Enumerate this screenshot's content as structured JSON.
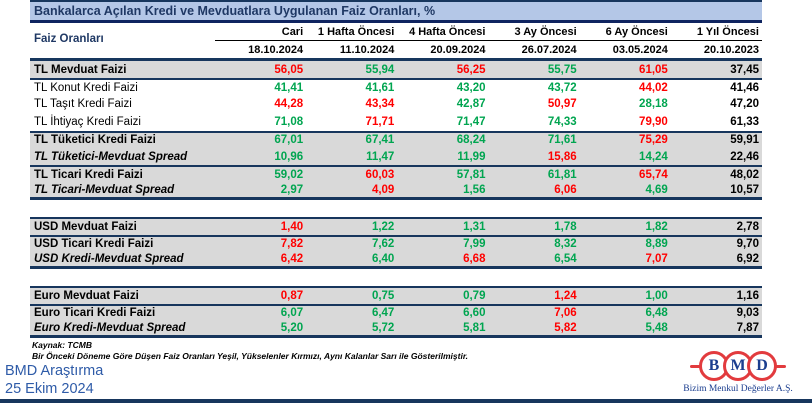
{
  "title": "Bankalarca Açılan Kredi ve Mevduatlara Uygulanan Faiz Oranları, %",
  "colors": {
    "red": "#FF0000",
    "green": "#00A550",
    "black": "#000000",
    "navy_border": "#17365D",
    "title_bg": "#B4C7E7",
    "title_text": "#1F3864",
    "shaded_row_bg": "#D9D9D9",
    "footer_blue": "#2E5BA8",
    "logo_red": "#E23B3E",
    "logo_blue": "#1B3E8F"
  },
  "table": {
    "corner_label": "Faiz Oranları",
    "columns": [
      {
        "label": "Cari",
        "date": "18.10.2024"
      },
      {
        "label": "1 Hafta Öncesi",
        "date": "11.10.2024"
      },
      {
        "label": "4 Hafta Öncesi",
        "date": "20.09.2024"
      },
      {
        "label": "3 Ay Öncesi",
        "date": "26.07.2024"
      },
      {
        "label": "6 Ay Öncesi",
        "date": "03.05.2024"
      },
      {
        "label": "1 Yıl Öncesi",
        "date": "20.10.2023"
      }
    ],
    "rows": [
      {
        "label": "TL Mevduat Faizi",
        "style": "bold",
        "shaded": true,
        "flags": [],
        "values": [
          [
            "56,05",
            "r"
          ],
          [
            "55,94",
            "g"
          ],
          [
            "56,25",
            "r"
          ],
          [
            "55,75",
            "g"
          ],
          [
            "61,05",
            "r"
          ],
          [
            "37,45",
            "k"
          ]
        ]
      },
      {
        "label": "TL Konut Kredi Faizi",
        "style": "regular",
        "shaded": false,
        "flags": [
          "bt"
        ],
        "values": [
          [
            "41,41",
            "g"
          ],
          [
            "41,61",
            "g"
          ],
          [
            "43,20",
            "g"
          ],
          [
            "43,72",
            "g"
          ],
          [
            "44,02",
            "r"
          ],
          [
            "41,46",
            "k"
          ]
        ]
      },
      {
        "label": "TL Taşıt Kredi Faizi",
        "style": "regular",
        "shaded": false,
        "flags": [],
        "values": [
          [
            "44,28",
            "r"
          ],
          [
            "43,34",
            "r"
          ],
          [
            "42,87",
            "g"
          ],
          [
            "50,97",
            "r"
          ],
          [
            "28,18",
            "g"
          ],
          [
            "47,20",
            "k"
          ]
        ]
      },
      {
        "label": "TL İhtiyaç Kredi Faizi",
        "style": "regular",
        "shaded": false,
        "flags": [],
        "values": [
          [
            "71,08",
            "g"
          ],
          [
            "71,71",
            "r"
          ],
          [
            "71,47",
            "g"
          ],
          [
            "74,33",
            "g"
          ],
          [
            "79,90",
            "r"
          ],
          [
            "61,33",
            "k"
          ]
        ]
      },
      {
        "label": "TL Tüketici Kredi Faizi",
        "style": "bold",
        "shaded": true,
        "flags": [
          "bt"
        ],
        "values": [
          [
            "67,01",
            "g"
          ],
          [
            "67,41",
            "g"
          ],
          [
            "68,24",
            "g"
          ],
          [
            "71,61",
            "g"
          ],
          [
            "75,29",
            "r"
          ],
          [
            "59,91",
            "k"
          ]
        ]
      },
      {
        "label": "TL Tüketici-Mevduat Spread",
        "style": "spread",
        "shaded": true,
        "flags": [],
        "values": [
          [
            "10,96",
            "g"
          ],
          [
            "11,47",
            "g"
          ],
          [
            "11,99",
            "g"
          ],
          [
            "15,86",
            "r"
          ],
          [
            "14,24",
            "g"
          ],
          [
            "22,46",
            "k"
          ]
        ]
      },
      {
        "label": "TL Ticari Kredi Faizi",
        "style": "bold",
        "shaded": true,
        "flags": [
          "bt"
        ],
        "values": [
          [
            "59,02",
            "g"
          ],
          [
            "60,03",
            "r"
          ],
          [
            "57,81",
            "g"
          ],
          [
            "61,81",
            "g"
          ],
          [
            "65,74",
            "r"
          ],
          [
            "48,02",
            "k"
          ]
        ]
      },
      {
        "label": "TL Ticari-Mevduat Spread",
        "style": "spread",
        "shaded": true,
        "flags": [
          "bb"
        ],
        "values": [
          [
            "2,97",
            "g"
          ],
          [
            "4,09",
            "r"
          ],
          [
            "1,56",
            "g"
          ],
          [
            "6,06",
            "r"
          ],
          [
            "4,69",
            "g"
          ],
          [
            "10,57",
            "k"
          ]
        ]
      },
      {
        "label": "USD Mevduat Faizi",
        "style": "bold",
        "shaded": true,
        "flags": [
          "gap",
          "bt"
        ],
        "values": [
          [
            "1,40",
            "r"
          ],
          [
            "1,22",
            "g"
          ],
          [
            "1,31",
            "g"
          ],
          [
            "1,78",
            "g"
          ],
          [
            "1,82",
            "g"
          ],
          [
            "2,78",
            "k"
          ]
        ]
      },
      {
        "label": "USD Ticari Kredi Faizi",
        "style": "bold",
        "shaded": true,
        "flags": [
          "bt"
        ],
        "values": [
          [
            "7,82",
            "r"
          ],
          [
            "7,62",
            "g"
          ],
          [
            "7,99",
            "g"
          ],
          [
            "8,32",
            "g"
          ],
          [
            "8,89",
            "g"
          ],
          [
            "9,70",
            "k"
          ]
        ]
      },
      {
        "label": "USD Kredi-Mevduat Spread",
        "style": "spread",
        "shaded": true,
        "flags": [
          "bb"
        ],
        "values": [
          [
            "6,42",
            "r"
          ],
          [
            "6,40",
            "g"
          ],
          [
            "6,68",
            "r"
          ],
          [
            "6,54",
            "g"
          ],
          [
            "7,07",
            "r"
          ],
          [
            "6,92",
            "k"
          ]
        ]
      },
      {
        "label": "Euro Mevduat Faizi",
        "style": "bold",
        "shaded": true,
        "flags": [
          "gap",
          "bt"
        ],
        "values": [
          [
            "0,87",
            "r"
          ],
          [
            "0,75",
            "g"
          ],
          [
            "0,79",
            "g"
          ],
          [
            "1,24",
            "r"
          ],
          [
            "1,00",
            "g"
          ],
          [
            "1,16",
            "k"
          ]
        ]
      },
      {
        "label": "Euro Ticari Kredi Faizi",
        "style": "bold",
        "shaded": true,
        "flags": [
          "bt"
        ],
        "values": [
          [
            "6,07",
            "g"
          ],
          [
            "6,47",
            "g"
          ],
          [
            "6,60",
            "g"
          ],
          [
            "7,06",
            "r"
          ],
          [
            "6,48",
            "g"
          ],
          [
            "9,03",
            "k"
          ]
        ]
      },
      {
        "label": "Euro Kredi-Mevduat Spread",
        "style": "spread",
        "shaded": true,
        "flags": [
          "bb"
        ],
        "values": [
          [
            "5,20",
            "g"
          ],
          [
            "5,72",
            "g"
          ],
          [
            "5,81",
            "g"
          ],
          [
            "5,82",
            "r"
          ],
          [
            "5,48",
            "g"
          ],
          [
            "7,87",
            "k"
          ]
        ]
      }
    ]
  },
  "footnotes": {
    "source": "Kaynak: TCMB",
    "legend": "Bir Önceki Döneme Göre Düşen Faiz Oranları Yeşil, Yükselenler Kırmızı, Aynı Kalanlar Sarı ile Gösterilmiştir."
  },
  "footer": {
    "team": "BMD Araştırma",
    "date": "25 Ekim 2024"
  },
  "logo": {
    "letters": [
      "B",
      "M",
      "D"
    ],
    "tagline": "Bizim Menkul Değerler A.Ş."
  }
}
